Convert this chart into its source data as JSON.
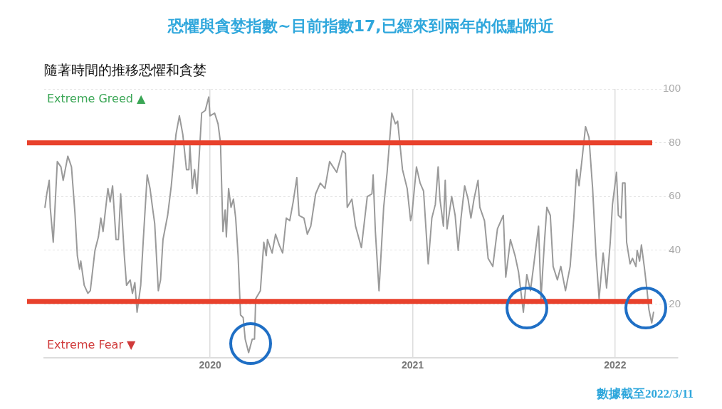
{
  "chart_data": {
    "type": "line",
    "title": "恐懼與貪婪指數~目前指數17,已經來到兩年的低點附近",
    "subtitle": "隨著時間的推移恐懼和貪婪",
    "annotations": [
      "Extreme Greed ▲",
      "Extreme Fear ▼",
      "數據截至2022/3/11"
    ],
    "xlim": [
      2019.18,
      2022.31
    ],
    "xticks": [
      2020,
      2021,
      2022
    ],
    "ylim": [
      0,
      100
    ],
    "yticks": [
      20,
      40,
      60,
      80,
      100
    ],
    "grid": true,
    "legend": false,
    "marker": "none",
    "line_style": "solid",
    "ref_lines": [
      {
        "axis": "y",
        "value": 80,
        "color": "#e8412c"
      },
      {
        "axis": "y",
        "value": 21,
        "color": "#e8412c"
      }
    ],
    "series": [
      {
        "color": "#9a9a9a",
        "x": [
          2019.184,
          2019.193,
          2019.205,
          2019.21,
          2019.225,
          2019.245,
          2019.263,
          2019.274,
          2019.297,
          2019.315,
          2019.332,
          2019.344,
          2019.355,
          2019.361,
          2019.378,
          2019.396,
          2019.408,
          2019.431,
          2019.448,
          2019.46,
          2019.471,
          2019.495,
          2019.506,
          2019.518,
          2019.535,
          2019.547,
          2019.558,
          2019.576,
          2019.587,
          2019.605,
          2019.616,
          2019.628,
          2019.639,
          2019.657,
          2019.669,
          2019.689,
          2019.703,
          2019.715,
          2019.726,
          2019.744,
          2019.755,
          2019.767,
          2019.79,
          2019.808,
          2019.831,
          2019.848,
          2019.865,
          2019.883,
          2019.895,
          2019.9,
          2019.912,
          2019.923,
          2019.935,
          2019.952,
          2019.958,
          2019.976,
          2019.993,
          2019.999,
          2020.022,
          2020.039,
          2020.051,
          2020.063,
          2020.074,
          2020.08,
          2020.091,
          2020.103,
          2020.115,
          2020.126,
          2020.138,
          2020.15,
          2020.163,
          2020.173,
          2020.19,
          2020.208,
          2020.219,
          2020.225,
          2020.248,
          2020.265,
          2020.277,
          2020.283,
          2020.306,
          2020.323,
          2020.341,
          2020.358,
          2020.376,
          2020.393,
          2020.41,
          2020.428,
          2020.439,
          2020.463,
          2020.48,
          2020.497,
          2020.521,
          2020.544,
          2020.567,
          2020.59,
          2020.625,
          2020.654,
          2020.668,
          2020.677,
          2020.7,
          2020.718,
          2020.747,
          2020.776,
          2020.799,
          2020.805,
          2020.816,
          2020.834,
          2020.857,
          2020.874,
          2020.897,
          2020.915,
          2020.926,
          2020.95,
          2020.973,
          2020.99,
          2020.996,
          2021.019,
          2021.037,
          2021.054,
          2021.077,
          2021.095,
          2021.112,
          2021.126,
          2021.135,
          2021.152,
          2021.161,
          2021.17,
          2021.193,
          2021.21,
          2021.225,
          2021.239,
          2021.257,
          2021.274,
          2021.288,
          2021.303,
          2021.323,
          2021.332,
          2021.355,
          2021.373,
          2021.396,
          2021.419,
          2021.448,
          2021.46,
          2021.483,
          2021.506,
          2021.523,
          2021.547,
          2021.564,
          2021.582,
          2021.599,
          2021.622,
          2021.634,
          2021.651,
          2021.663,
          2021.68,
          2021.694,
          2021.715,
          2021.732,
          2021.755,
          2021.778,
          2021.796,
          2021.81,
          2021.822,
          2021.837,
          2021.854,
          2021.871,
          2021.889,
          2021.906,
          2021.921,
          2021.941,
          2021.958,
          2021.976,
          2021.987,
          2022.007,
          2022.016,
          2022.03,
          2022.037,
          2022.049,
          2022.057,
          2022.074,
          2022.086,
          2022.103,
          2022.109,
          2022.121,
          2022.13,
          2022.144,
          2022.158,
          2022.167,
          2022.181,
          2022.19
        ],
        "values": [
          56,
          61,
          66,
          56,
          43,
          73,
          71,
          66,
          75,
          71,
          54,
          38,
          33,
          36,
          27,
          24,
          25,
          40,
          45,
          52,
          47,
          63,
          58,
          64,
          44,
          44,
          61,
          38,
          27,
          29,
          24,
          28,
          17,
          27,
          43,
          68,
          63,
          56,
          50,
          25,
          29,
          44,
          53,
          64,
          83,
          90,
          83,
          70,
          70,
          79,
          63,
          70,
          61,
          83,
          91,
          92,
          97,
          90,
          91,
          87,
          80,
          47,
          55,
          45,
          63,
          56,
          59,
          52,
          38,
          16,
          15,
          7,
          2,
          7,
          7,
          22,
          25,
          43,
          38,
          44,
          39,
          46,
          42,
          39,
          52,
          51,
          58,
          67,
          53,
          52,
          46,
          49,
          61,
          65,
          63,
          73,
          69,
          77,
          76,
          56,
          59,
          49,
          41,
          60,
          61,
          68,
          47,
          25,
          56,
          69,
          91,
          87,
          88,
          70,
          63,
          51,
          53,
          71,
          65,
          62,
          35,
          52,
          57,
          71,
          59,
          49,
          66,
          48,
          60,
          53,
          40,
          52,
          64,
          59,
          52,
          59,
          66,
          56,
          51,
          37,
          34,
          48,
          53,
          30,
          44,
          38,
          32,
          17,
          31,
          25,
          35,
          49,
          22,
          43,
          56,
          53,
          34,
          29,
          34,
          25,
          34,
          52,
          70,
          64,
          74,
          86,
          82,
          63,
          38,
          22,
          39,
          26,
          43,
          57,
          69,
          53,
          52,
          65,
          65,
          43,
          35,
          37,
          34,
          40,
          36,
          42,
          34,
          25,
          18,
          13,
          17
        ]
      }
    ]
  }
}
